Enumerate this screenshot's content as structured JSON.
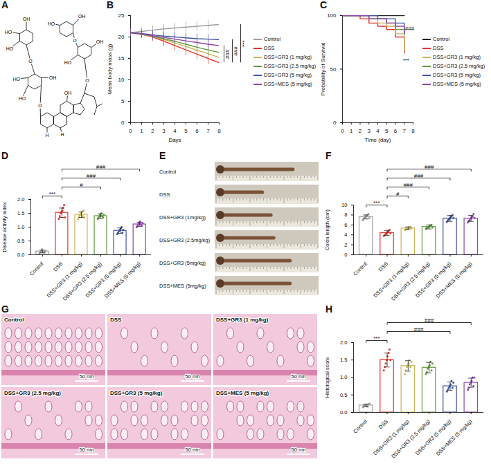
{
  "chart_data": [
    {
      "panel_label": "B",
      "type": "line",
      "x_label": "Days",
      "y_label": "Mean body mass (g)",
      "x": [
        0,
        1,
        2,
        3,
        4,
        5,
        6,
        7,
        8
      ],
      "xlim": [
        0,
        8
      ],
      "xticks": [
        0,
        1,
        2,
        3,
        4,
        5,
        6,
        7,
        8
      ],
      "ylim": [
        0,
        25
      ],
      "yticks": [
        0,
        5,
        10,
        15,
        20,
        25
      ],
      "legend": "right",
      "series": [
        {
          "name": "Control",
          "color": "#9e9e9e",
          "values": [
            21,
            21.3,
            21.6,
            21.9,
            22.1,
            22.3,
            22.5,
            22.7,
            22.9
          ],
          "errors": [
            0.8,
            0.9,
            1,
            1,
            1.1,
            1.1,
            1.1,
            1.2,
            1.2
          ]
        },
        {
          "name": "DSS",
          "color": "#e8312a",
          "values": [
            21,
            20.6,
            20,
            19,
            18,
            17,
            16,
            15,
            14
          ],
          "errors": [
            0.8,
            0.9,
            1,
            1.1,
            1.2,
            1.3,
            1.3,
            1.4,
            1.4
          ]
        },
        {
          "name": "DSS+GR3 (1 mg/kg)",
          "color": "#c9b458",
          "values": [
            21,
            20.6,
            20.1,
            19.4,
            18.6,
            17.8,
            16.9,
            16.1,
            15.2
          ],
          "errors": [
            0.8,
            0.9,
            1,
            1,
            1.1,
            1.2,
            1.2,
            1.3,
            1.3
          ]
        },
        {
          "name": "DSS+GR3 (2.5 mg/kg)",
          "color": "#5f9a3c",
          "values": [
            21,
            20.7,
            20.2,
            19.6,
            19,
            18.3,
            17.6,
            17,
            16.4
          ],
          "errors": [
            0.8,
            0.9,
            1,
            1,
            1.1,
            1.1,
            1.2,
            1.2,
            1.3
          ]
        },
        {
          "name": "DSS+GR3 (5 mg/kg)",
          "color": "#3d56a6",
          "values": [
            21,
            20.8,
            20.5,
            20.2,
            20,
            19.8,
            19.6,
            19.5,
            19.4
          ],
          "errors": [
            0.8,
            0.9,
            0.9,
            1,
            1,
            1,
            1.1,
            1.1,
            1.1
          ]
        },
        {
          "name": "DSS+MES (5 mg/kg)",
          "color": "#8e44ad",
          "values": [
            21,
            20.7,
            20.3,
            19.9,
            19.5,
            19.1,
            18.7,
            18.3,
            18
          ],
          "errors": [
            0.8,
            0.9,
            1,
            1,
            1,
            1.1,
            1.1,
            1.2,
            1.2
          ]
        }
      ],
      "significance": [
        {
          "pair": [
            "Control",
            "DSS"
          ],
          "label": "***"
        },
        {
          "pair": [
            "DSS+GR3 (5 mg/kg)",
            "DSS"
          ],
          "label": "###"
        },
        {
          "pair": [
            "DSS+MES (5 mg/kg)",
            "DSS"
          ],
          "label": "###"
        }
      ]
    },
    {
      "panel_label": "C",
      "type": "line",
      "line_style": "step",
      "x_label": "Time (day)",
      "y_label": "Probability of Survival",
      "x": [
        0,
        1,
        2,
        3,
        4,
        5,
        6,
        7
      ],
      "xlim": [
        0,
        8
      ],
      "xticks": [
        0,
        1,
        2,
        3,
        4,
        5,
        6,
        7,
        8
      ],
      "ylim": [
        0,
        100
      ],
      "yticks": [
        0,
        50,
        100
      ],
      "legend": "right",
      "series": [
        {
          "name": "Control",
          "color": "#222222",
          "values": [
            100,
            100,
            100,
            100,
            100,
            100,
            100,
            100
          ]
        },
        {
          "name": "DSS",
          "color": "#e8312a",
          "values": [
            100,
            100,
            97,
            93,
            90,
            87,
            80,
            65
          ]
        },
        {
          "name": "DSS+GR3 (1 mg/kg)",
          "color": "#c9b458",
          "values": [
            100,
            100,
            100,
            97,
            93,
            90,
            83,
            67
          ]
        },
        {
          "name": "DSS+GR3 (2.5 mg/kg)",
          "color": "#5f9a3c",
          "values": [
            100,
            100,
            100,
            97,
            97,
            93,
            87,
            83
          ]
        },
        {
          "name": "DSS+GR3 (5 mg/kg)",
          "color": "#3d56a6",
          "values": [
            100,
            100,
            100,
            100,
            97,
            97,
            93,
            83
          ]
        },
        {
          "name": "DSS+MES (5 mg/kg)",
          "color": "#8e44ad",
          "values": [
            100,
            100,
            100,
            97,
            97,
            93,
            90,
            83
          ]
        }
      ],
      "annotations": [
        {
          "text": "***",
          "x": 7.2,
          "y": 58
        },
        {
          "text": "###",
          "x": 7.6,
          "y": 88
        }
      ]
    },
    {
      "panel_label": "D",
      "type": "bar",
      "y_label": "Disease activity index",
      "categories": [
        "Control",
        "DSS",
        "DSS+GR3 (1 mg/kg)",
        "DSS+GR3 (2.5 mg/kg)",
        "DSS+GR3 (5 mg/kg)",
        "DSS+MES (5 mg/kg)"
      ],
      "values": [
        0.12,
        1.52,
        1.45,
        1.4,
        0.87,
        1.1
      ],
      "errors": [
        0.05,
        0.17,
        0.1,
        0.08,
        0.1,
        0.08
      ],
      "points": [
        [
          0.05,
          0.1,
          0.15,
          0.2,
          0.1,
          0.12,
          0.08,
          0.15
        ],
        [
          1.3,
          1.4,
          1.5,
          1.55,
          1.6,
          1.7,
          1.8,
          1.35
        ],
        [
          1.3,
          1.4,
          1.45,
          1.5,
          1.55,
          1.4,
          1.6,
          1.35
        ],
        [
          1.3,
          1.35,
          1.4,
          1.45,
          1.5,
          1.4,
          1.35,
          1.45
        ],
        [
          0.75,
          0.8,
          0.85,
          0.9,
          0.95,
          1.0,
          0.8,
          0.9
        ],
        [
          1.0,
          1.05,
          1.1,
          1.15,
          1.2,
          1.1,
          1.05,
          1.15
        ]
      ],
      "colors": [
        "#9e9e9e",
        "#e8312a",
        "#c9b458",
        "#5f9a3c",
        "#3d56a6",
        "#8e44ad"
      ],
      "ylim": [
        0,
        2
      ],
      "yticks": [
        {
          "value": 0,
          "label": "0.0"
        },
        {
          "value": 0.5,
          "label": "0.5"
        },
        {
          "value": 1,
          "label": "1.0"
        },
        {
          "value": 1.5,
          "label": "1.5"
        },
        {
          "value": 2,
          "label": "2.0"
        }
      ],
      "significance": [
        {
          "pair": [
            "Control",
            "DSS"
          ],
          "label": "***"
        },
        {
          "pair": [
            "DSS",
            "DSS+GR3 (2.5 mg/kg)"
          ],
          "label": "#"
        },
        {
          "pair": [
            "DSS",
            "DSS+GR3 (5 mg/kg)"
          ],
          "label": "###"
        },
        {
          "pair": [
            "DSS",
            "DSS+MES (5 mg/kg)"
          ],
          "label": "###"
        }
      ]
    },
    {
      "panel_label": "F",
      "type": "bar",
      "y_label": "Colon length (cm)",
      "categories": [
        "Control",
        "DSS",
        "DSS+GR3 (1 mg/kg)",
        "DSS+GR3 (2.5 mg/kg)",
        "DSS+GR3 (5 mg/kg)",
        "DSS+MES (5 mg/kg)"
      ],
      "values": [
        7.6,
        4.4,
        5.3,
        5.6,
        7.3,
        7.3
      ],
      "errors": [
        0.4,
        0.5,
        0.3,
        0.4,
        0.6,
        0.6
      ],
      "points": [
        [
          7.0,
          7.3,
          7.5,
          7.7,
          7.8,
          8.0,
          8.2,
          7.4
        ],
        [
          3.8,
          4.0,
          4.2,
          4.4,
          4.6,
          4.8,
          5.0,
          4.3
        ],
        [
          5.0,
          5.1,
          5.2,
          5.3,
          5.4,
          5.5,
          5.6,
          5.3
        ],
        [
          5.2,
          5.4,
          5.5,
          5.6,
          5.7,
          5.9,
          6.0,
          5.5
        ],
        [
          6.6,
          6.9,
          7.1,
          7.3,
          7.5,
          7.7,
          8.0,
          7.4
        ],
        [
          6.5,
          6.8,
          7.0,
          7.3,
          7.5,
          7.7,
          8.2,
          7.4
        ]
      ],
      "colors": [
        "#9e9e9e",
        "#e8312a",
        "#c9b458",
        "#5f9a3c",
        "#3d56a6",
        "#8e44ad"
      ],
      "ylim": [
        0,
        10
      ],
      "yticks": [
        0,
        2,
        4,
        6,
        8,
        10
      ],
      "significance": [
        {
          "pair": [
            "Control",
            "DSS"
          ],
          "label": "***"
        },
        {
          "pair": [
            "DSS",
            "DSS+GR3 (1 mg/kg)"
          ],
          "label": "#"
        },
        {
          "pair": [
            "DSS",
            "DSS+GR3 (2.5 mg/kg)"
          ],
          "label": "###"
        },
        {
          "pair": [
            "DSS",
            "DSS+GR3 (5 mg/kg)"
          ],
          "label": "###"
        },
        {
          "pair": [
            "DSS",
            "DSS+MES (5 mg/kg)"
          ],
          "label": "###"
        }
      ]
    },
    {
      "panel_label": "H",
      "type": "bar",
      "y_label": "Histological score",
      "categories": [
        "Control",
        "DSS",
        "DSS+GR3 (1 mg/kg)",
        "DSS+GR3 (2.5 mg/kg)",
        "DSS+GR3 (5 mg/kg)",
        "DSS+MES (5 mg/kg)"
      ],
      "values": [
        0.2,
        1.5,
        1.33,
        1.28,
        0.75,
        0.85
      ],
      "errors": [
        0.04,
        0.2,
        0.15,
        0.15,
        0.12,
        0.13
      ],
      "points": [
        [
          0.15,
          0.18,
          0.2,
          0.22,
          0.2,
          0.17,
          0.23,
          0.25
        ],
        [
          1.2,
          1.3,
          1.4,
          1.5,
          1.6,
          1.7,
          1.8,
          1.5
        ],
        [
          1.1,
          1.2,
          1.3,
          1.35,
          1.4,
          1.5,
          1.3,
          1.45
        ],
        [
          1.1,
          1.15,
          1.25,
          1.3,
          1.35,
          1.45,
          1.2,
          1.4
        ],
        [
          0.6,
          0.65,
          0.7,
          0.75,
          0.8,
          0.9,
          0.7,
          0.85
        ],
        [
          0.65,
          0.7,
          0.8,
          0.85,
          0.9,
          1.0,
          0.75,
          1.0
        ]
      ],
      "colors": [
        "#9e9e9e",
        "#e8312a",
        "#c9b458",
        "#5f9a3c",
        "#3d56a6",
        "#8e44ad"
      ],
      "ylim": [
        0,
        2
      ],
      "yticks": [
        {
          "value": 0,
          "label": "0.0"
        },
        {
          "value": 0.5,
          "label": "0.5"
        },
        {
          "value": 1,
          "label": "1.0"
        },
        {
          "value": 1.5,
          "label": "1.5"
        },
        {
          "value": 2,
          "label": "2.0"
        }
      ],
      "significance": [
        {
          "pair": [
            "Control",
            "DSS"
          ],
          "label": "***"
        },
        {
          "pair": [
            "DSS",
            "DSS+GR3 (5 mg/kg)"
          ],
          "label": "###"
        },
        {
          "pair": [
            "DSS",
            "DSS+MES (5 mg/kg)"
          ],
          "label": "###"
        }
      ]
    }
  ],
  "structure": {
    "panel_label": "A",
    "atom_labels": [
      "HO",
      "OH",
      "HO",
      "O",
      "HO",
      "HO",
      "OH",
      "O",
      "H",
      "OH",
      "H",
      "O",
      "OH",
      "HO",
      "OH",
      "O",
      "HO"
    ]
  },
  "photos": {
    "panel_label": "E",
    "rows": [
      "Control",
      "DSS",
      "DSS+GR3 (1mg/kg)",
      "DSS+GR3 (2.5mg/kg)",
      "DSS+GR3 (5mg/kg)",
      "DSS+MES (5mg/kg)"
    ]
  },
  "histology": {
    "panel_label": "G",
    "titles": [
      "Control",
      "DSS",
      "DSS+GR3 (1 mg/kg)",
      "DSS+GR3 (2.5 mg/kg)",
      "DSS+GR3 (5 mg/kg)",
      "DSS+MES (5 mg/kg)"
    ],
    "scale_bar": "50 nm"
  }
}
